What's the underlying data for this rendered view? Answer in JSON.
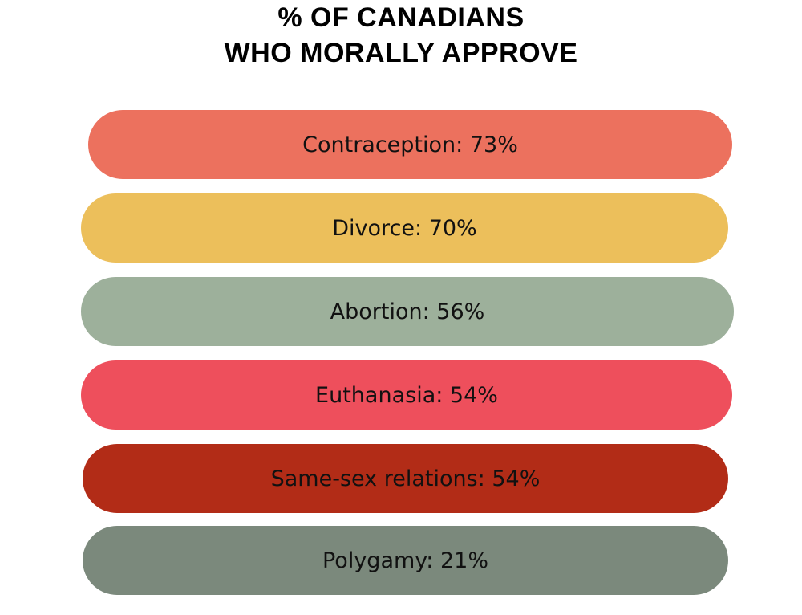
{
  "title_lines": [
    "% OF CANADIANS",
    "WHO MORALLY APPROVE"
  ],
  "items": [
    {
      "label": "Contraception: 73%",
      "color": "#ec715e"
    },
    {
      "label": "Divorce: 70%",
      "color": "#ecbf5b"
    },
    {
      "label": "Abortion: 56%",
      "color": "#9db09b"
    },
    {
      "label": "Euthanasia: 54%",
      "color": "#ee4f5c"
    },
    {
      "label": "Same-sex relations: 54%",
      "color": "#b22c17"
    },
    {
      "label": "Polygamy: 21%",
      "color": "#7b897c"
    }
  ]
}
